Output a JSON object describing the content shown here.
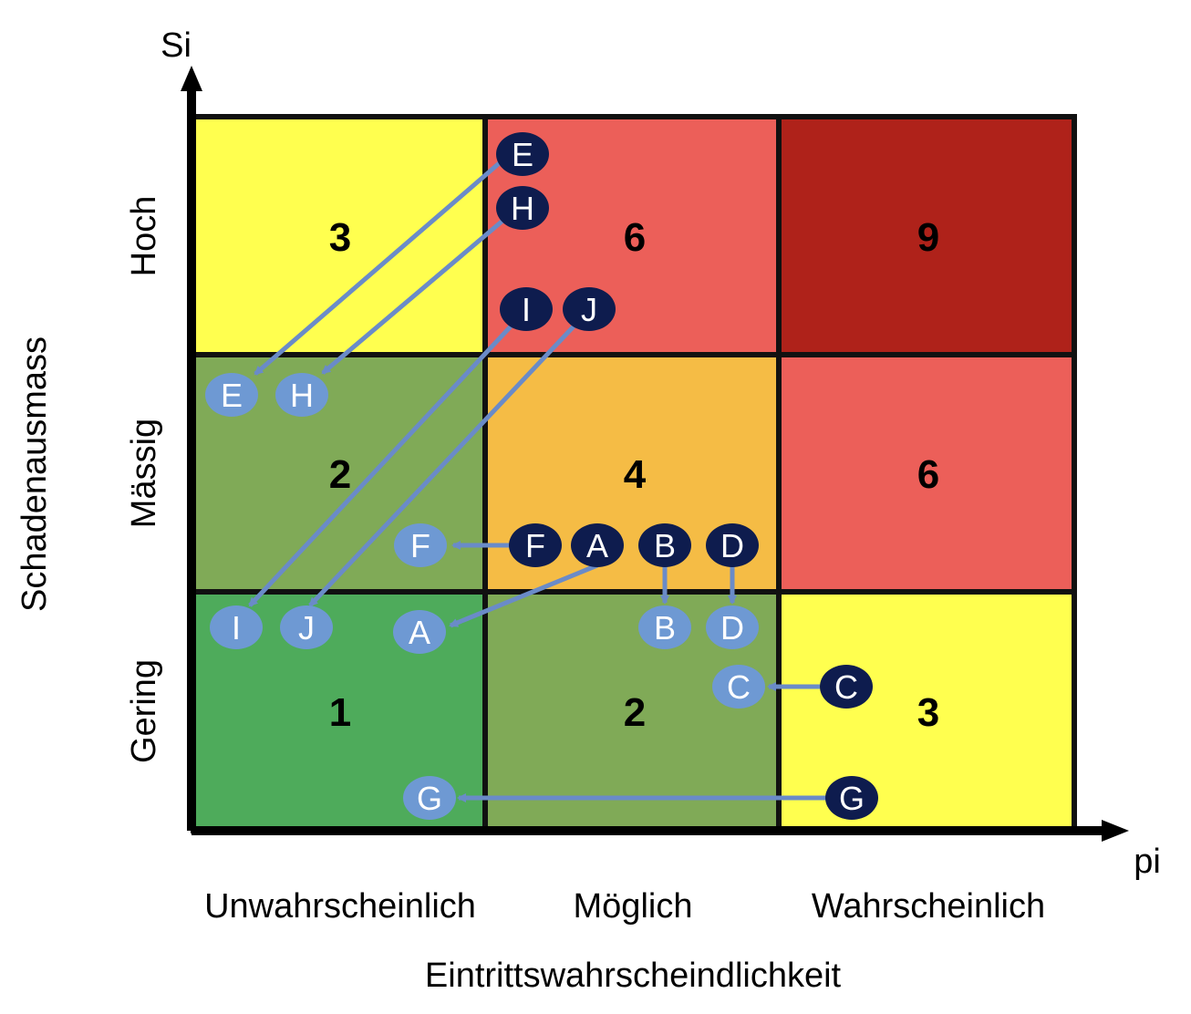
{
  "axes": {
    "y_arrow_label": "Si",
    "x_arrow_label": "pi",
    "y_title": "Schadenausmass",
    "x_title": "Eintrittswahrscheindlichkeit",
    "y_categories": [
      "Hoch",
      "Mässig",
      "Gering"
    ],
    "x_categories": [
      "Unwahrscheinlich",
      "Möglich",
      "Wahrscheinlich"
    ]
  },
  "colors": {
    "yellow": "#FFFF4F",
    "light_red": "#EC5F59",
    "dark_red": "#AF221A",
    "olive_green": "#80AA57",
    "orange": "#F5BC45",
    "green": "#4EAB5B",
    "marker_before": "#0E1C4E",
    "marker_after": "#6E99D3",
    "arrow": "#6A8BC8"
  },
  "grid": {
    "rows": [
      [
        {
          "value": "3",
          "color": "yellow"
        },
        {
          "value": "6",
          "color": "light_red"
        },
        {
          "value": "9",
          "color": "dark_red"
        }
      ],
      [
        {
          "value": "2",
          "color": "olive_green"
        },
        {
          "value": "4",
          "color": "orange"
        },
        {
          "value": "6",
          "color": "light_red"
        }
      ],
      [
        {
          "value": "1",
          "color": "green"
        },
        {
          "value": "2",
          "color": "olive_green"
        },
        {
          "value": "3",
          "color": "yellow"
        }
      ]
    ]
  },
  "risks": [
    {
      "id": "E",
      "label": "E"
    },
    {
      "id": "H",
      "label": "H"
    },
    {
      "id": "I",
      "label": "I"
    },
    {
      "id": "J",
      "label": "J"
    },
    {
      "id": "F",
      "label": "F"
    },
    {
      "id": "A",
      "label": "A"
    },
    {
      "id": "B",
      "label": "B"
    },
    {
      "id": "D",
      "label": "D"
    },
    {
      "id": "C",
      "label": "C"
    },
    {
      "id": "G",
      "label": "G"
    }
  ]
}
